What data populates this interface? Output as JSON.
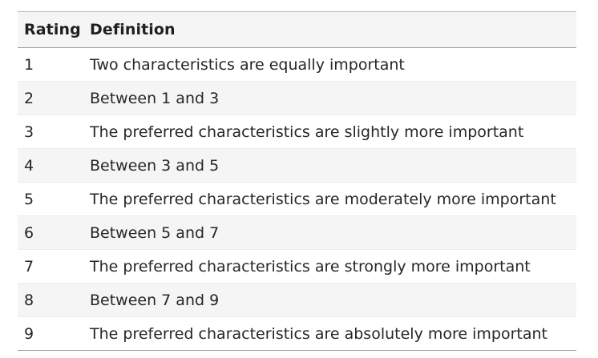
{
  "table": {
    "headers": [
      "Rating",
      "Definition"
    ],
    "rows": [
      {
        "rating": "1",
        "definition": "Two characteristics are equally important"
      },
      {
        "rating": "2",
        "definition": "Between 1 and 3"
      },
      {
        "rating": "3",
        "definition": "The preferred characteristics are slightly more important"
      },
      {
        "rating": "4",
        "definition": "Between 3 and 5"
      },
      {
        "rating": "5",
        "definition": "The preferred characteristics are moderately more important"
      },
      {
        "rating": "6",
        "definition": "Between 5 and 7"
      },
      {
        "rating": "7",
        "definition": "The preferred characteristics are strongly more important"
      },
      {
        "rating": "8",
        "definition": "Between 7 and 9"
      },
      {
        "rating": "9",
        "definition": "The preferred characteristics are absolutely more important"
      }
    ]
  }
}
